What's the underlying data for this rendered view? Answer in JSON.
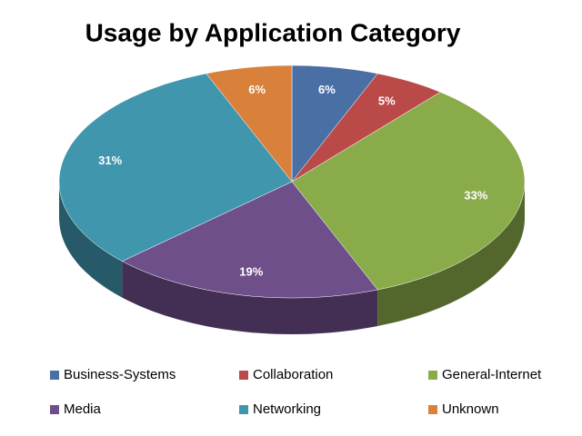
{
  "chart_data": {
    "type": "pie3d",
    "title": "Usage by Application Category",
    "categories": [
      "Business-Systems",
      "Collaboration",
      "General-Internet",
      "Media",
      "Networking",
      "Unknown"
    ],
    "values": [
      6,
      5,
      33,
      19,
      31,
      6
    ],
    "value_labels": [
      "6%",
      "5%",
      "33%",
      "19%",
      "31%",
      "6%"
    ],
    "colors": [
      "#4a6fa5",
      "#b94a48",
      "#8aab4a",
      "#6e4f8a",
      "#3f96ad",
      "#d9803a"
    ],
    "legend": "bottom"
  }
}
